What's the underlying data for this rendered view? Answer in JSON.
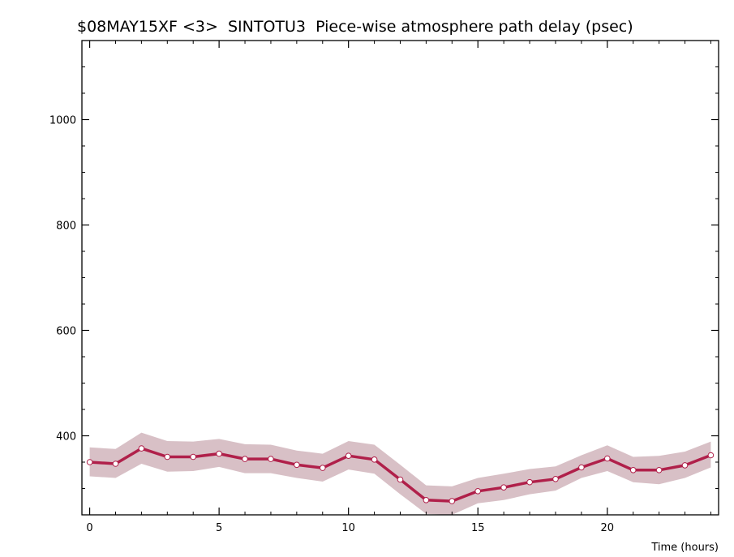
{
  "chart_data": {
    "type": "line",
    "title": "$08MAY15XF <3>  SINTOTU3  Piece-wise atmosphere path delay (psec)",
    "xlabel": "Time (hours)",
    "ylabel": "",
    "xlim": [
      -0.3,
      24.3
    ],
    "ylim": [
      250,
      1150
    ],
    "x_ticks": [
      0,
      5,
      10,
      15,
      20
    ],
    "x_tick_labels": [
      "0",
      "5",
      "10",
      "15",
      "20"
    ],
    "y_ticks": [
      400,
      600,
      800,
      1000
    ],
    "y_tick_labels": [
      "400",
      "600",
      "800",
      "1000"
    ],
    "grid": false,
    "series": [
      {
        "x": [
          0,
          1,
          2,
          3,
          4,
          5,
          6,
          7,
          8,
          9,
          10,
          11,
          12,
          13,
          14,
          15,
          16,
          17,
          18,
          19,
          20,
          21,
          22,
          23,
          24
        ],
        "values": [
          350,
          347,
          376,
          360,
          360,
          366,
          356,
          356,
          345,
          339,
          362,
          355,
          317,
          278,
          276,
          295,
          302,
          312,
          318,
          340,
          357,
          335,
          335,
          344,
          363
        ],
        "band_upper": [
          378,
          375,
          406,
          390,
          389,
          394,
          384,
          383,
          372,
          366,
          390,
          383,
          345,
          306,
          304,
          320,
          328,
          337,
          342,
          363,
          382,
          360,
          362,
          370,
          389
        ],
        "band_lower": [
          323,
          320,
          347,
          332,
          333,
          341,
          329,
          329,
          320,
          313,
          336,
          328,
          289,
          252,
          250,
          272,
          278,
          289,
          296,
          320,
          333,
          312,
          308,
          320,
          340
        ]
      }
    ],
    "colors": {
      "line": "#b0204a",
      "band": "#d8c0c6",
      "marker_fill": "#ffffff"
    }
  }
}
